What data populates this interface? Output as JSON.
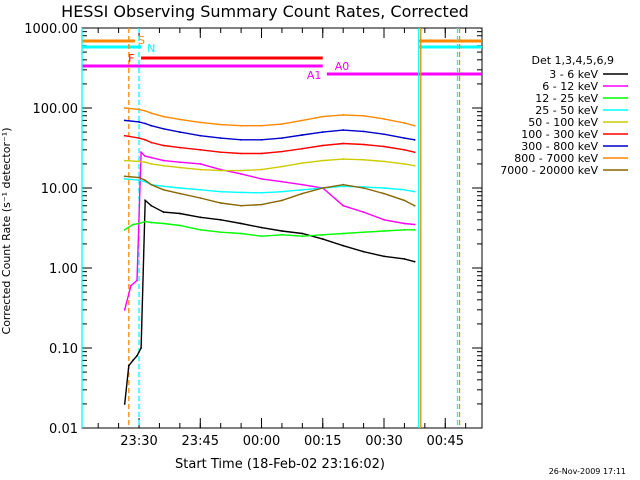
{
  "chart_data": {
    "type": "line",
    "title": "HESSI Observing Summary Count Rates, Corrected",
    "xlabel": "Start Time (18-Feb-02 23:16:02)",
    "ylabel": "Corrected Count Rate (s⁻¹ detector⁻¹)",
    "yscale": "log",
    "ylim": [
      0.01,
      1000
    ],
    "xlim": [
      "23:16:02",
      "00:54:00"
    ],
    "x_ticks": [
      "23:30",
      "23:45",
      "00:00",
      "00:15",
      "00:30",
      "00:45"
    ],
    "y_ticks": [
      "0.01",
      "0.10",
      "1.00",
      "10.00",
      "100.00",
      "1000.00"
    ],
    "grid": false,
    "legend_position": "right",
    "legend_title": "Det 1,3,4,5,6,9",
    "series": [
      {
        "name": "3 - 6 keV",
        "color": "#000000",
        "x": [
          "23:26:30",
          "23:27:30",
          "23:28:30",
          "23:29:30",
          "23:30:30",
          "23:31:30",
          "23:33:00",
          "23:36:00",
          "23:40:00",
          "23:45:00",
          "23:50:00",
          "23:55:00",
          "00:00:00",
          "00:05:00",
          "00:10:00",
          "00:15:00",
          "00:20:00",
          "00:25:00",
          "00:30:00",
          "00:35:00",
          "00:37:30"
        ],
        "y": [
          0.02,
          0.06,
          0.07,
          0.08,
          0.1,
          7,
          6,
          5,
          4.8,
          4.3,
          4,
          3.6,
          3.2,
          2.9,
          2.7,
          2.3,
          1.9,
          1.6,
          1.4,
          1.3,
          1.2
        ]
      },
      {
        "name": "6 - 12 keV",
        "color": "#ff00ff",
        "x": [
          "23:26:30",
          "23:28:00",
          "23:29:30",
          "23:30:30",
          "23:31:30",
          "23:33:00",
          "23:36:00",
          "23:40:00",
          "23:45:00",
          "23:50:00",
          "23:55:00",
          "00:00:00",
          "00:05:00",
          "00:10:00",
          "00:15:00",
          "00:20:00",
          "00:25:00",
          "00:30:00",
          "00:35:00",
          "00:37:30"
        ],
        "y": [
          0.3,
          0.6,
          0.7,
          28,
          25,
          24,
          22,
          21,
          20,
          17,
          15,
          13,
          12,
          11,
          10,
          6,
          5,
          4,
          3.6,
          3.5
        ]
      },
      {
        "name": "12 - 25 keV",
        "color": "#00ff00",
        "x": [
          "23:26:30",
          "23:28:30",
          "23:30:00",
          "23:31:30",
          "23:33:00",
          "23:36:00",
          "23:40:00",
          "23:45:00",
          "23:50:00",
          "23:55:00",
          "00:00:00",
          "00:05:00",
          "00:10:00",
          "00:15:00",
          "00:20:00",
          "00:25:00",
          "00:30:00",
          "00:35:00",
          "00:37:30"
        ],
        "y": [
          3,
          3.5,
          3.6,
          3.8,
          3.7,
          3.6,
          3.4,
          3,
          2.8,
          2.7,
          2.5,
          2.6,
          2.5,
          2.6,
          2.7,
          2.8,
          2.9,
          3,
          3
        ]
      },
      {
        "name": "25 - 50 keV",
        "color": "#00ffff",
        "x": [
          "23:26:30",
          "23:30:00",
          "23:31:30",
          "23:33:00",
          "23:36:00",
          "23:40:00",
          "23:45:00",
          "23:50:00",
          "23:55:00",
          "00:00:00",
          "00:05:00",
          "00:10:00",
          "00:15:00",
          "00:20:00",
          "00:25:00",
          "00:30:00",
          "00:35:00",
          "00:37:30"
        ],
        "y": [
          13,
          12.5,
          12,
          11,
          10.5,
          10,
          9.5,
          9,
          8.8,
          8.7,
          9,
          9.5,
          10,
          10.5,
          10.3,
          10,
          9.5,
          9
        ]
      },
      {
        "name": "50 - 100 keV",
        "color": "#cccc00",
        "x": [
          "23:26:30",
          "23:30:00",
          "23:31:30",
          "23:33:00",
          "23:36:00",
          "23:40:00",
          "23:45:00",
          "23:50:00",
          "23:55:00",
          "00:00:00",
          "00:05:00",
          "00:10:00",
          "00:15:00",
          "00:20:00",
          "00:25:00",
          "00:30:00",
          "00:35:00",
          "00:37:30"
        ],
        "y": [
          22,
          21.5,
          21,
          20,
          19,
          18,
          17,
          16.5,
          16.5,
          17,
          18.5,
          20.5,
          22,
          23,
          22.5,
          21.5,
          20,
          19
        ]
      },
      {
        "name": "100 - 300 keV",
        "color": "#ff0000",
        "x": [
          "23:26:30",
          "23:30:00",
          "23:31:30",
          "23:33:00",
          "23:36:00",
          "23:40:00",
          "23:45:00",
          "23:50:00",
          "23:55:00",
          "00:00:00",
          "00:05:00",
          "00:10:00",
          "00:15:00",
          "00:20:00",
          "00:25:00",
          "00:30:00",
          "00:35:00",
          "00:37:30"
        ],
        "y": [
          45,
          42,
          40,
          37,
          34,
          32,
          30,
          28,
          27,
          27,
          28.5,
          31,
          34,
          36,
          35,
          33,
          30,
          28
        ]
      },
      {
        "name": "300 - 800 keV",
        "color": "#0000cc",
        "x": [
          "23:26:30",
          "23:30:00",
          "23:31:30",
          "23:33:00",
          "23:36:00",
          "23:40:00",
          "23:45:00",
          "23:50:00",
          "23:55:00",
          "00:00:00",
          "00:05:00",
          "00:10:00",
          "00:15:00",
          "00:20:00",
          "00:25:00",
          "00:30:00",
          "00:35:00",
          "00:37:30"
        ],
        "y": [
          70,
          67,
          64,
          60,
          55,
          50,
          45,
          42,
          40,
          40,
          42,
          46,
          50,
          53,
          51,
          47,
          42,
          40
        ]
      },
      {
        "name": "800 - 7000 keV",
        "color": "#ff8800",
        "x": [
          "23:26:30",
          "23:30:00",
          "23:31:30",
          "23:33:00",
          "23:36:00",
          "23:40:00",
          "23:45:00",
          "23:50:00",
          "23:55:00",
          "00:00:00",
          "00:05:00",
          "00:10:00",
          "00:15:00",
          "00:20:00",
          "00:25:00",
          "00:30:00",
          "00:35:00",
          "00:37:30"
        ],
        "y": [
          100,
          96,
          92,
          86,
          78,
          72,
          66,
          62,
          60,
          60,
          63,
          70,
          78,
          82,
          80,
          73,
          65,
          60
        ]
      },
      {
        "name": "7000 - 20000 keV",
        "color": "#886600",
        "x": [
          "23:26:30",
          "23:30:00",
          "23:31:30",
          "23:33:00",
          "23:36:00",
          "23:40:00",
          "23:45:00",
          "23:50:00",
          "23:55:00",
          "00:00:00",
          "00:05:00",
          "00:10:00",
          "00:15:00",
          "00:20:00",
          "00:25:00",
          "00:30:00",
          "00:35:00",
          "00:37:30"
        ],
        "y": [
          14,
          13.5,
          12.5,
          11,
          9.5,
          8.5,
          7.5,
          6.5,
          6,
          6.2,
          7,
          8.5,
          10,
          11,
          10,
          8.5,
          7,
          6
        ]
      }
    ],
    "flag_bars": [
      {
        "label": "S",
        "color": "#ff8800",
        "segments": [
          [
            "23:16:02",
            "23:29:00"
          ],
          [
            "00:38:30",
            "00:54:00"
          ]
        ]
      },
      {
        "label": "N",
        "color": "#00ffff",
        "segments": [
          [
            "23:16:02",
            "23:30:30"
          ],
          [
            "00:38:30",
            "00:54:00"
          ]
        ]
      },
      {
        "label": "F",
        "color": "#ff0000",
        "segments": [
          [
            "23:30:30",
            "00:15:00"
          ]
        ]
      },
      {
        "label": "A0",
        "color": "#ff00ff",
        "segments": [
          [
            "23:16:02",
            "00:15:00"
          ]
        ]
      },
      {
        "label": "A1",
        "color": "#ff00ff",
        "segments": [
          [
            "00:16:00",
            "00:54:00"
          ]
        ]
      }
    ],
    "vertical_lines": [
      {
        "x": "23:16:02",
        "color": "#00ffff",
        "style": "solid"
      },
      {
        "x": "23:27:30",
        "color": "#ff8800",
        "style": "dashed"
      },
      {
        "x": "23:30:00",
        "color": "#00ffff",
        "style": "dashed"
      },
      {
        "x": "00:38:30",
        "color": "#00ffff",
        "style": "solid"
      },
      {
        "x": "00:39:00",
        "color": "#ff8800",
        "style": "solid"
      },
      {
        "x": "00:48:00",
        "color": "#00ffff",
        "style": "dashed"
      },
      {
        "x": "00:48:30",
        "color": "#ff8800",
        "style": "dashed"
      }
    ]
  },
  "footer": {
    "timestamp": "26-Nov-2009 17:11"
  }
}
